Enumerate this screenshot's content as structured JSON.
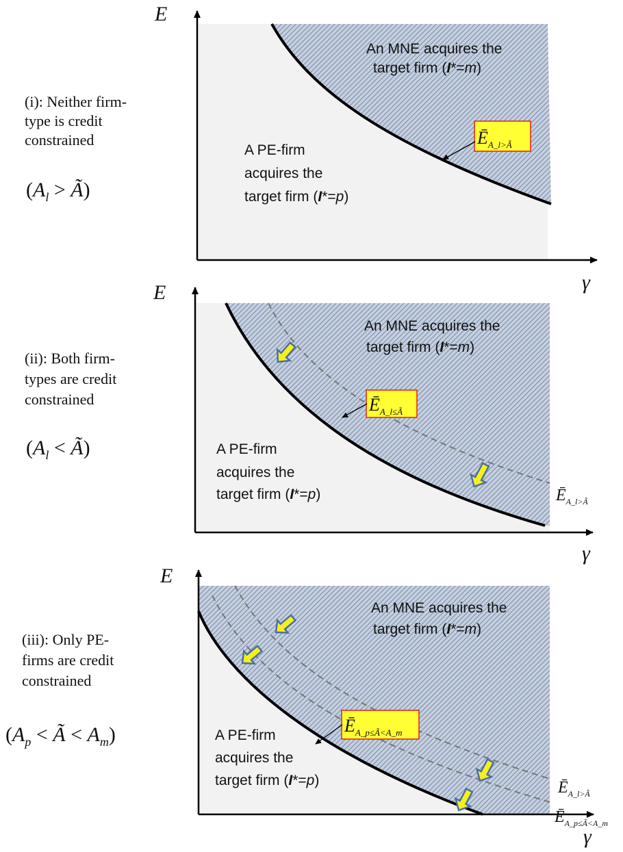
{
  "colors": {
    "shade_fill": "#c6d0de",
    "hatch_line": "#7b8cae",
    "pe_region": "#f2f2f2",
    "label_box_fill": "#ffff33",
    "label_box_border": "#e02020",
    "arrow_fill": "#f5f01a",
    "arrow_outline": "#4a6fa5",
    "curve": "#000000",
    "dashed_curve": "#777777"
  },
  "axes": {
    "y_label": "E",
    "x_label": "γ"
  },
  "panels": [
    {
      "case": [
        "(i): Neither firm-",
        "type is credit",
        "constrained"
      ],
      "condition": "(A_l > Ã)",
      "mne_region": [
        "An MNE acquires the",
        "target firm (",
        "I",
        "*=",
        "m",
        ")"
      ],
      "pe_region": [
        "A PE-firm",
        "acquires the",
        "target firm (",
        "I",
        "*=",
        "p",
        ")"
      ],
      "box_label": {
        "main": "Ē",
        "sub": "A_l>Ã"
      },
      "side_labels": []
    },
    {
      "case": [
        "(ii): Both firm-",
        "types are credit",
        "constrained"
      ],
      "condition": "(A_l < Ã)",
      "mne_region": [
        "An MNE acquires the",
        "target firm (",
        "I",
        "*=",
        "m",
        ")"
      ],
      "pe_region": [
        "A PE-firm",
        "acquires the",
        "target firm (",
        "I",
        "*=",
        "p",
        ")"
      ],
      "box_label": {
        "main": "Ē",
        "sub": "A_l≤Ã"
      },
      "side_labels": [
        {
          "main": "Ē",
          "sub": "A_l>Ã"
        }
      ]
    },
    {
      "case": [
        "(iii): Only PE-",
        "firms are credit",
        "constrained"
      ],
      "condition": "(A_p < Ã < A_m)",
      "mne_region": [
        "An MNE acquires the",
        "target firm (",
        "I",
        "*=",
        "m",
        ")"
      ],
      "pe_region": [
        "A PE-firm",
        "acquires the",
        "target firm (",
        "I",
        "*=",
        "p",
        ")"
      ],
      "box_label": {
        "main": "Ē",
        "sub": "A_p≤Ã<A_m"
      },
      "side_labels": [
        {
          "main": "Ē",
          "sub": "A_l>Ã"
        },
        {
          "main": "Ē",
          "sub": "A_p≤Ã<A_m"
        }
      ]
    }
  ]
}
